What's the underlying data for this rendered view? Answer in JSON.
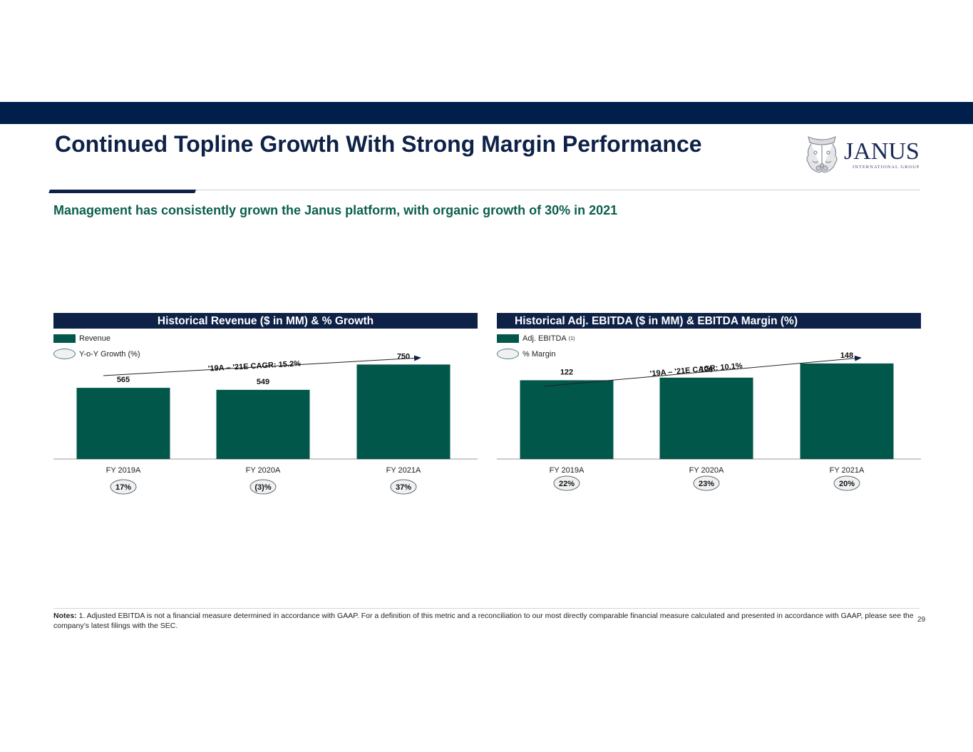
{
  "header": {
    "title": "Continued Topline Growth With Strong Margin Performance",
    "subtitle": "Management has consistently grown the Janus platform, with organic growth of 30% in 2021",
    "logo": {
      "wordmark": "JANUS",
      "tagline": "INTERNATIONAL GROUP",
      "icon": "janus-two-faced-head-icon"
    }
  },
  "colors": {
    "navy": "#0e2147",
    "bar": "#02574b",
    "subtitle_green": "#0b5f4d",
    "oval_fill": "#f1f1f1"
  },
  "chart_data": [
    {
      "type": "bar",
      "title": "Historical Revenue ($ in MM) & % Growth",
      "categories": [
        "FY 2019A",
        "FY 2020A",
        "FY 2021A"
      ],
      "series": [
        {
          "name": "Revenue",
          "values": [
            565,
            549,
            750
          ],
          "labels": [
            "565",
            "549",
            "750"
          ]
        },
        {
          "name": "Y-o-Y Growth (%)",
          "values": [
            17,
            -3,
            37
          ],
          "labels": [
            "17%",
            "(3)%",
            "37%"
          ]
        }
      ],
      "legend": [
        {
          "label": "Revenue",
          "marker": "bar-swatch",
          "note": ""
        },
        {
          "label": "Y-o-Y Growth (%)",
          "marker": "oval",
          "note": ""
        }
      ],
      "annotation": "'19A – '21E CAGR:  15.2%",
      "xlabel": "",
      "ylabel": "",
      "ylim": [
        0,
        820
      ],
      "grid": false,
      "legend_position": "top-left"
    },
    {
      "type": "bar",
      "title": "Historical Adj. EBITDA ($ in MM) & EBITDA Margin (%)",
      "categories": [
        "FY 2019A",
        "FY 2020A",
        "FY 2021A"
      ],
      "series": [
        {
          "name": "Adj. EBITDA",
          "values": [
            122,
            126,
            148
          ],
          "labels": [
            "122",
            "126",
            "148"
          ]
        },
        {
          "name": "% Margin",
          "values": [
            22,
            23,
            20
          ],
          "labels": [
            "22%",
            "23%",
            "20%"
          ]
        }
      ],
      "legend": [
        {
          "label": "Adj. EBITDA",
          "marker": "bar-swatch",
          "note": "(1)"
        },
        {
          "label": "% Margin",
          "marker": "oval",
          "note": ""
        }
      ],
      "annotation": "'19A – '21E CAGR:  10.1%",
      "xlabel": "",
      "ylabel": "",
      "ylim": [
        0,
        160
      ],
      "grid": false,
      "legend_position": "top-left"
    }
  ],
  "footer": {
    "notes_label": "Notes:",
    "notes_text": " 1. Adjusted EBITDA is not a financial measure determined in accordance with GAAP. For a definition of this metric and a reconciliation to our most directly comparable financial measure calculated and presented in accordance with GAAP, please see the company’s latest filings with the SEC.",
    "page_number": "29"
  }
}
